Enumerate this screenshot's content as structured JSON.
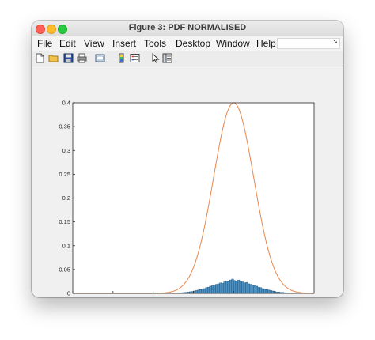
{
  "window": {
    "title": "Figure 3: PDF NORMALISED"
  },
  "menu": {
    "items": [
      "File",
      "Edit",
      "View",
      "Insert",
      "Tools",
      "Desktop",
      "Window",
      "Help"
    ]
  },
  "toolbar": {
    "icons": [
      "new-figure-icon",
      "open-file-icon",
      "save-icon",
      "print-icon",
      "link-plot-icon",
      "insert-colorbar-icon",
      "insert-legend-icon",
      "pointer-icon",
      "property-inspector-icon"
    ]
  },
  "colors": {
    "bar_fill": "#4a90c2",
    "bar_edge": "#1f4f72",
    "curve": "#e8864c"
  },
  "chart_data": {
    "type": "bar",
    "title": "",
    "xlabel": "",
    "ylabel": "",
    "xlim": [
      -6,
      6
    ],
    "ylim": [
      0,
      0.4
    ],
    "xticks": [
      -6,
      -4,
      -2,
      0,
      2,
      4
    ],
    "yticks": [
      0,
      0.05,
      0.1,
      0.15,
      0.2,
      0.25,
      0.3,
      0.35,
      0.4
    ],
    "ytick_labels": [
      "0",
      "0.05",
      "0.1",
      "0.15",
      "0.2",
      "0.25",
      "0.3",
      "0.35",
      "0.4"
    ],
    "grid": false,
    "histogram": {
      "bin_width": 0.1,
      "bin_centers": [
        -0.95,
        -0.85,
        -0.75,
        -0.65,
        -0.55,
        -0.45,
        -0.35,
        -0.25,
        -0.15,
        -0.05,
        0.05,
        0.15,
        0.25,
        0.35,
        0.45,
        0.55,
        0.65,
        0.75,
        0.85,
        0.95,
        1.05,
        1.15,
        1.25,
        1.35,
        1.45,
        1.55,
        1.65,
        1.75,
        1.85,
        1.95,
        2.05,
        2.15,
        2.25,
        2.35,
        2.45,
        2.55,
        2.65,
        2.75,
        2.85,
        2.95,
        3.05,
        3.15,
        3.25,
        3.35,
        3.45,
        3.55,
        3.65,
        3.75,
        3.85,
        3.95,
        4.05,
        4.15,
        4.25,
        4.35,
        4.45,
        4.55,
        4.65,
        4.75,
        4.85,
        4.95
      ],
      "values": [
        0.0005,
        0.0008,
        0.001,
        0.001,
        0.0015,
        0.002,
        0.002,
        0.003,
        0.0035,
        0.004,
        0.005,
        0.006,
        0.007,
        0.008,
        0.009,
        0.01,
        0.012,
        0.013,
        0.015,
        0.016,
        0.018,
        0.019,
        0.02,
        0.022,
        0.021,
        0.024,
        0.026,
        0.025,
        0.028,
        0.03,
        0.027,
        0.026,
        0.028,
        0.025,
        0.024,
        0.022,
        0.023,
        0.02,
        0.019,
        0.018,
        0.016,
        0.015,
        0.013,
        0.012,
        0.01,
        0.009,
        0.008,
        0.007,
        0.006,
        0.005,
        0.004,
        0.003,
        0.003,
        0.002,
        0.002,
        0.0015,
        0.001,
        0.001,
        0.0008,
        0.0005
      ]
    },
    "series": [
      {
        "type": "line",
        "distribution": "normal",
        "mean": 2,
        "std": 1,
        "peak": 0.4
      }
    ]
  }
}
